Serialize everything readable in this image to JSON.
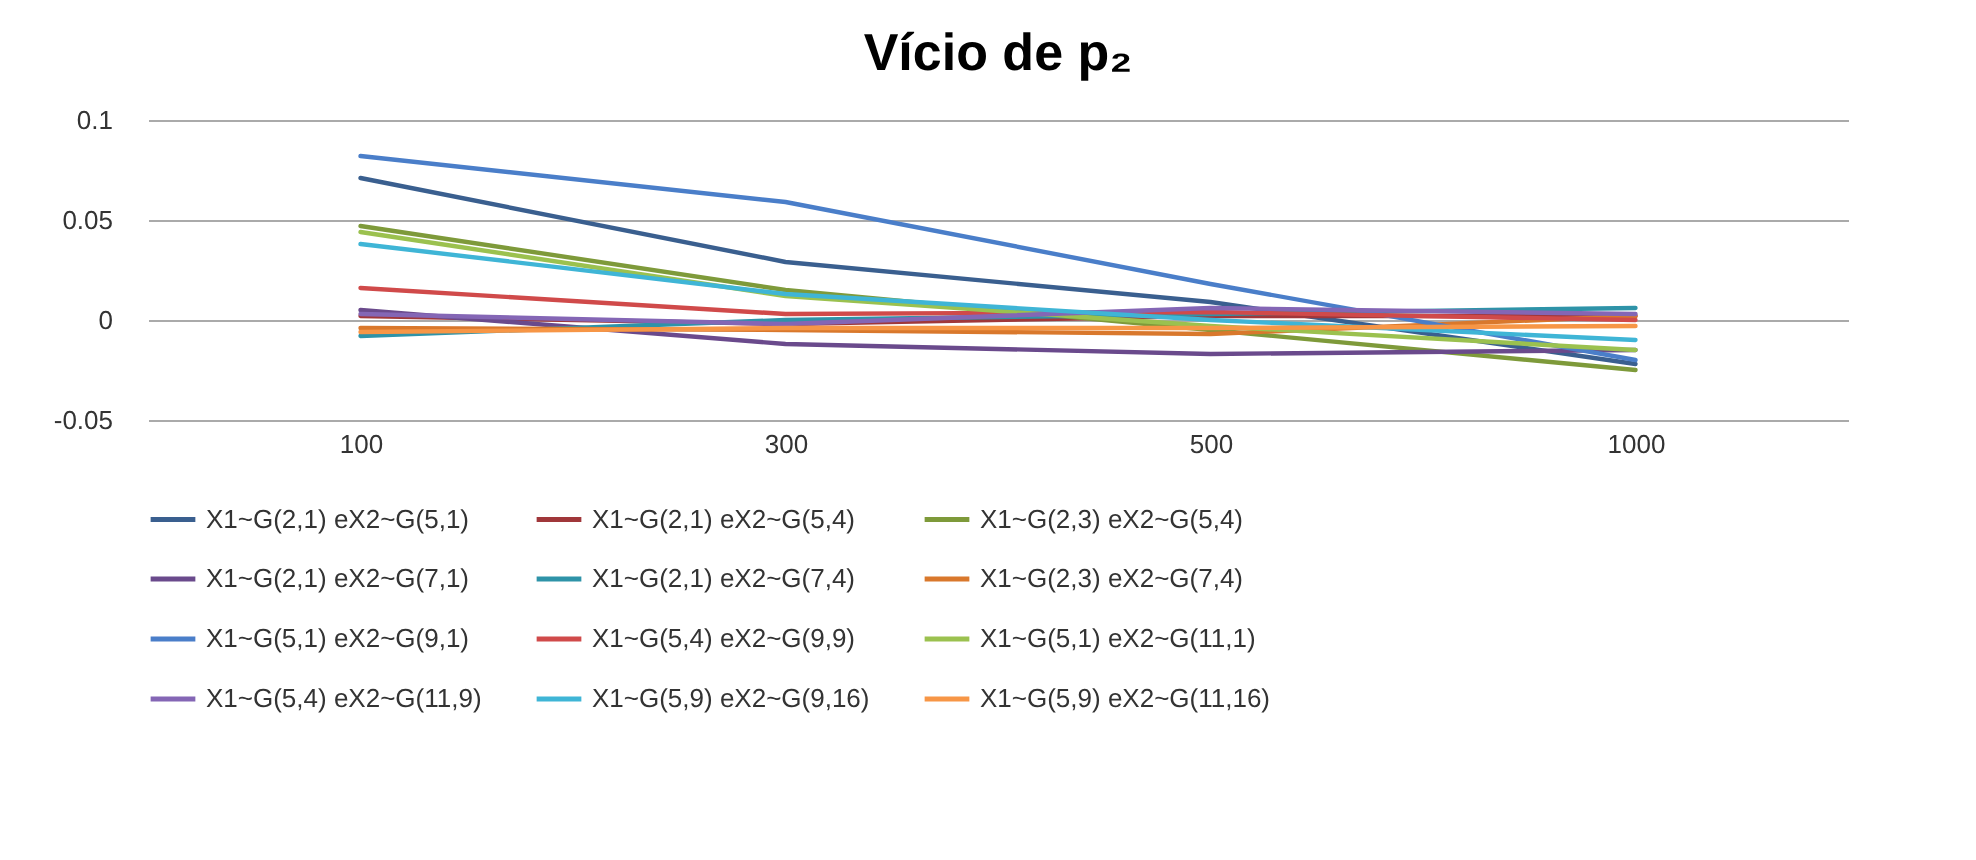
{
  "chart_data": {
    "type": "line",
    "title": "Vício de p₂",
    "categories": [
      "100",
      "300",
      "500",
      "1000"
    ],
    "ylim": [
      -0.05,
      0.1
    ],
    "yticks": [
      -0.05,
      0,
      0.05,
      0.1
    ],
    "grid": "y",
    "legend": "bottom",
    "marker": "none",
    "line_style": "solid",
    "series": [
      {
        "name": "X1~G(2,1) eX2~G(5,1)",
        "color": "#3a5f8f",
        "values": [
          0.071,
          0.029,
          0.009,
          -0.022
        ]
      },
      {
        "name": "X1~G(2,1) eX2~G(5,4)",
        "color": "#a0373a",
        "values": [
          0.002,
          -0.002,
          0.002,
          0.002
        ]
      },
      {
        "name": "X1~G(2,3) eX2~G(5,4)",
        "color": "#7e9a3a",
        "values": [
          0.047,
          0.015,
          -0.005,
          -0.025
        ]
      },
      {
        "name": "X1~G(2,1) eX2~G(7,1)",
        "color": "#6a4a8c",
        "values": [
          0.005,
          -0.012,
          -0.017,
          -0.015
        ]
      },
      {
        "name": "X1~G(2,1) eX2~G(7,4)",
        "color": "#2e93a8",
        "values": [
          -0.008,
          0.0,
          0.003,
          0.006
        ]
      },
      {
        "name": "X1~G(2,3) eX2~G(7,4)",
        "color": "#d9782c",
        "values": [
          -0.004,
          -0.005,
          -0.007,
          0.002
        ]
      },
      {
        "name": "X1~G(5,1) eX2~G(9,1)",
        "color": "#4a7ec9",
        "values": [
          0.082,
          0.059,
          0.018,
          -0.02
        ]
      },
      {
        "name": "X1~G(5,4) eX2~G(9,9)",
        "color": "#d04a4a",
        "values": [
          0.016,
          0.003,
          0.004,
          0.0
        ]
      },
      {
        "name": "X1~G(5,1) eX2~G(11,1)",
        "color": "#9bc14f",
        "values": [
          0.044,
          0.012,
          -0.003,
          -0.015
        ]
      },
      {
        "name": "X1~G(5,4) eX2~G(11,9)",
        "color": "#8466b5",
        "values": [
          0.003,
          -0.002,
          0.006,
          0.003
        ]
      },
      {
        "name": "X1~G(5,9) eX2~G(9,16)",
        "color": "#3fb5d6",
        "values": [
          0.038,
          0.013,
          0.0,
          -0.01
        ]
      },
      {
        "name": "X1~G(5,9) eX2~G(11,16)",
        "color": "#f79646",
        "values": [
          -0.006,
          -0.004,
          -0.004,
          -0.003
        ]
      }
    ]
  }
}
